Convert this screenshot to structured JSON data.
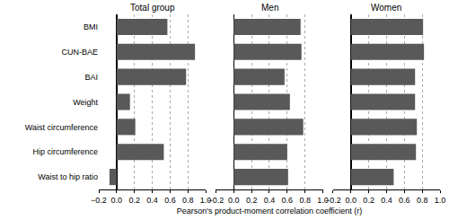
{
  "chart_data": [
    {
      "type": "bar",
      "title": "Total group",
      "orientation": "horizontal",
      "grid": true,
      "color": "#595959",
      "categories": [
        "BMI",
        "CUN-BAE",
        "BAI",
        "Weight",
        "Waist circumference",
        "Hip circumference",
        "Waist to hip ratio"
      ],
      "values": [
        0.57,
        0.88,
        0.78,
        0.15,
        0.21,
        0.53,
        -0.08
      ],
      "xlim": [
        -0.2,
        1.0
      ],
      "xticks": [
        {
          "value": -0.2,
          "label": "−0.2"
        },
        {
          "value": 0,
          "label": "0.0"
        },
        0.2,
        0.4,
        0.6,
        0.8,
        {
          "value": 1.0,
          "label": "1.0"
        }
      ]
    },
    {
      "type": "bar",
      "title": "Men",
      "orientation": "horizontal",
      "grid": true,
      "color": "#595959",
      "tick_labels": "x",
      "x_label": "Pearson's product-moment correlation coefficient (r)",
      "categories": [
        "BMI",
        "CUN-BAE",
        "BAI",
        "Weight",
        "Waist circumference",
        "Hip circumference",
        "Waist to hip ratio"
      ],
      "values": [
        0.75,
        0.76,
        0.57,
        0.63,
        0.78,
        0.6,
        0.61
      ],
      "xlim": [
        -0.2,
        1.0
      ],
      "xticks": [
        {
          "value": -0.2,
          "label": "−0.2"
        },
        {
          "value": 0,
          "label": "0.0"
        },
        0.2,
        0.4,
        0.6,
        0.8,
        {
          "value": 1.0,
          "label": "1.0"
        }
      ]
    },
    {
      "type": "bar",
      "title": "Women",
      "orientation": "horizontal",
      "grid": true,
      "color": "#595959",
      "tick_labels": "x",
      "categories": [
        "BMI",
        "CUN-BAE",
        "BAI",
        "Weight",
        "Waist circumference",
        "Hip circumference",
        "Waist to hip ratio"
      ],
      "values": [
        0.81,
        0.82,
        0.72,
        0.72,
        0.74,
        0.73,
        0.48
      ],
      "xlim": [
        -0.2,
        1.0
      ],
      "xticks": [
        {
          "value": -0.2,
          "label": "−0.2"
        },
        {
          "value": 0,
          "label": "0.0"
        },
        0.2,
        0.4,
        0.6,
        0.8,
        {
          "value": 1.0,
          "label": "1.0"
        }
      ]
    }
  ]
}
